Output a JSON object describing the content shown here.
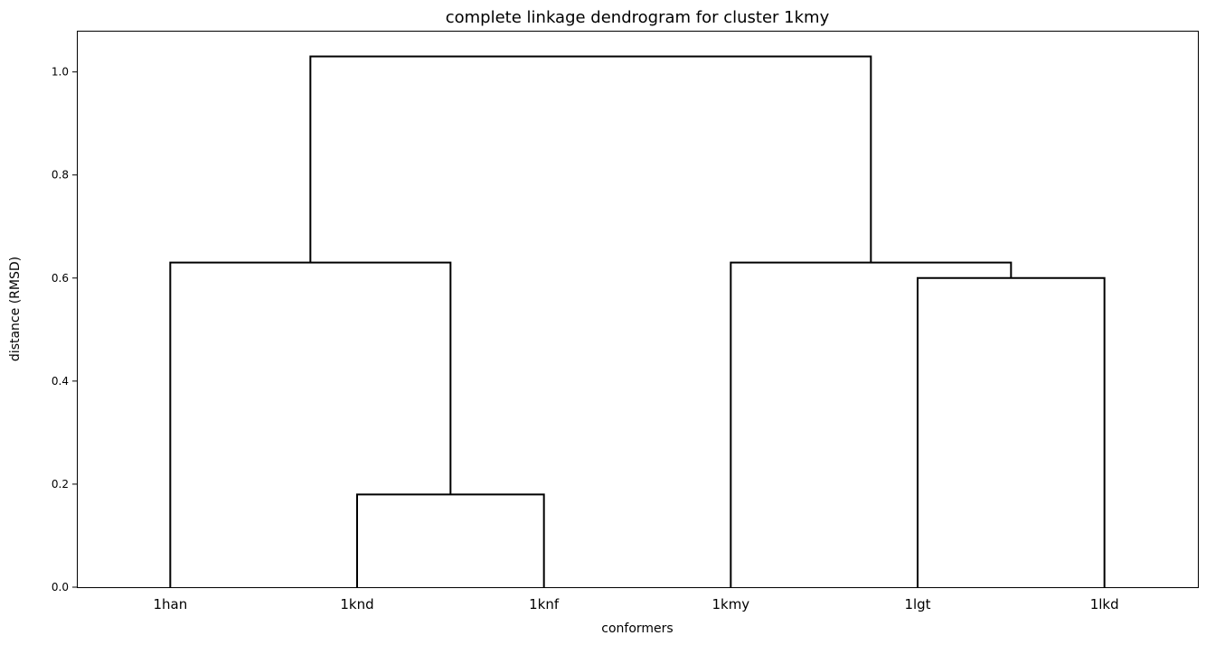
{
  "chart_data": {
    "type": "dendrogram",
    "title": "complete linkage dendrogram for cluster 1kmy",
    "xlabel": "conformers",
    "ylabel": "distance (RMSD)",
    "leaves": [
      "1han",
      "1knd",
      "1knf",
      "1kmy",
      "1lgt",
      "1lkd"
    ],
    "ylim": [
      0.0,
      1.08
    ],
    "yticks": [
      "0.0",
      "0.2",
      "0.4",
      "0.6",
      "0.8",
      "1.0"
    ],
    "links": [
      {
        "left": "1knd",
        "right": "1knf",
        "height": 0.18
      },
      {
        "left": "1lgt",
        "right": "1lkd",
        "height": 0.6
      },
      {
        "left": "1han",
        "right": "(1knd,1knf)",
        "height": 0.63
      },
      {
        "left": "1kmy",
        "right": "(1lgt,1lkd)",
        "height": 0.63
      },
      {
        "left": "(1han,(1knd,1knf))",
        "right": "(1kmy,(1lgt,1lkd))",
        "height": 1.03
      }
    ],
    "line_color": "#000000",
    "grid": false
  }
}
